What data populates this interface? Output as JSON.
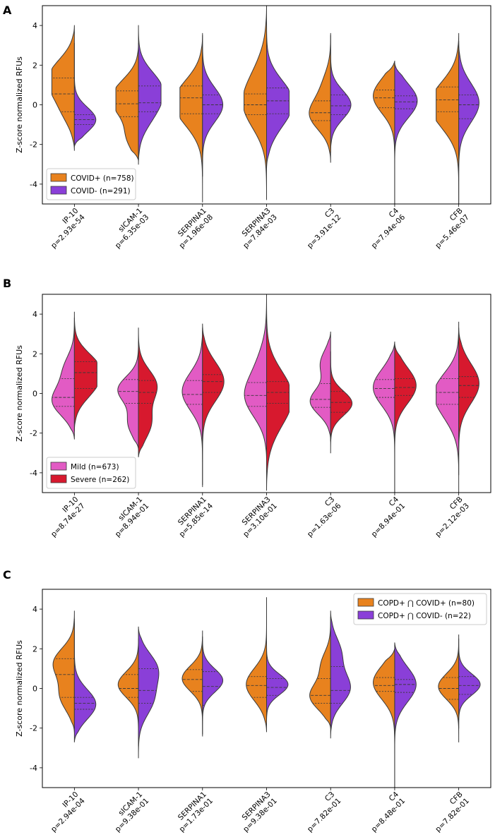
{
  "chart_data": [
    {
      "panel": "A",
      "type": "violin",
      "split": true,
      "ylabel": "Z-score normalized RFUs",
      "ylim": [
        -5,
        5
      ],
      "yticks": [
        -4,
        -2,
        0,
        2,
        4
      ],
      "legend_position": "bottom-left",
      "categories": [
        "IP-10",
        "sICAM-1",
        "SERPINA1",
        "SERPINA3",
        "C3",
        "C4",
        "CFB"
      ],
      "pvalues": [
        "p=2.93e-54",
        "p=6.35e-03",
        "p=1.96e-08",
        "p=7.84e-03",
        "p=3.91e-12",
        "p=7.94e-06",
        "p=5.46e-07"
      ],
      "series": [
        {
          "name": "COVID+ (n=758)",
          "color": "#E8821E",
          "side": "left",
          "violins": [
            {
              "min": -2.3,
              "max": 4.0,
              "q1": -0.35,
              "median": 0.55,
              "q3": 1.35,
              "peaks": [
                [
                  -0.3,
                  0.45
                ],
                [
                  1.0,
                  0.8
                ],
                [
                  1.9,
                  0.55
                ]
              ]
            },
            {
              "min": -2.8,
              "max": 3.1,
              "q1": -0.6,
              "median": 0.05,
              "q3": 0.7,
              "peaks": [
                [
                  -1.6,
                  0.5
                ],
                [
                  0.0,
                  0.85
                ],
                [
                  0.9,
                  0.6
                ]
              ]
            },
            {
              "min": -4.9,
              "max": 3.5,
              "q1": -0.45,
              "median": 0.35,
              "q3": 0.95,
              "peaks": [
                [
                  0.4,
                  0.9
                ],
                [
                  -0.5,
                  0.5
                ]
              ]
            },
            {
              "min": -4.8,
              "max": 5.0,
              "q1": -0.5,
              "median": 0.0,
              "q3": 0.55,
              "peaks": [
                [
                  -0.1,
                  0.9
                ],
                [
                  1.5,
                  0.35
                ]
              ]
            },
            {
              "min": -2.9,
              "max": 3.5,
              "q1": -0.8,
              "median": -0.4,
              "q3": 0.2,
              "peaks": [
                [
                  -0.5,
                  0.9
                ],
                [
                  1.0,
                  0.3
                ]
              ]
            },
            {
              "min": -5.0,
              "max": 2.2,
              "q1": -0.15,
              "median": 0.35,
              "q3": 0.75,
              "peaks": [
                [
                  0.45,
                  0.95
                ]
              ]
            },
            {
              "min": -5.0,
              "max": 3.6,
              "q1": -0.35,
              "median": 0.25,
              "q3": 0.9,
              "peaks": [
                [
                  0.3,
                  0.9
                ],
                [
                  -0.6,
                  0.5
                ]
              ]
            }
          ]
        },
        {
          "name": "COVID- (n=291)",
          "color": "#8A3FD8",
          "side": "right",
          "violins": [
            {
              "min": -2.1,
              "max": 3.1,
              "q1": -1.0,
              "median": -0.75,
              "q3": -0.5,
              "peaks": [
                [
                  -0.75,
                  0.95
                ]
              ]
            },
            {
              "min": -3.0,
              "max": 4.0,
              "q1": -0.35,
              "median": 0.1,
              "q3": 0.95,
              "peaks": [
                [
                  0.9,
                  0.9
                ],
                [
                  -0.4,
                  0.55
                ]
              ]
            },
            {
              "min": -3.6,
              "max": 3.6,
              "q1": -0.45,
              "median": 0.0,
              "q3": 0.5,
              "peaks": [
                [
                  0.0,
                  0.9
                ]
              ]
            },
            {
              "min": -3.2,
              "max": 5.0,
              "q1": -0.45,
              "median": 0.2,
              "q3": 0.85,
              "peaks": [
                [
                  0.4,
                  0.9
                ],
                [
                  -0.7,
                  0.45
                ]
              ]
            },
            {
              "min": -2.4,
              "max": 3.6,
              "q1": -0.5,
              "median": -0.05,
              "q3": 0.5,
              "peaks": [
                [
                  0.0,
                  0.9
                ]
              ]
            },
            {
              "min": -5.0,
              "max": 2.1,
              "q1": -0.2,
              "median": 0.15,
              "q3": 0.45,
              "peaks": [
                [
                  0.2,
                  1.0
                ]
              ]
            },
            {
              "min": -5.0,
              "max": 3.2,
              "q1": -0.7,
              "median": 0.0,
              "q3": 0.5,
              "peaks": [
                [
                  0.1,
                  0.9
                ]
              ]
            }
          ]
        }
      ]
    },
    {
      "panel": "B",
      "type": "violin",
      "split": true,
      "ylabel": "Z-score normalized RFUs",
      "ylim": [
        -5,
        5
      ],
      "yticks": [
        -4,
        -2,
        0,
        2,
        4
      ],
      "legend_position": "bottom-left",
      "categories": [
        "IP-10",
        "sICAM-1",
        "SERPINA1",
        "SERPINA3",
        "C3",
        "C4",
        "CFB"
      ],
      "pvalues": [
        "p=8.74e-27",
        "p=8.94e-01",
        "p=5.85e-14",
        "p=3.10e-01",
        "p=1.63e-06",
        "p=8.94e-01",
        "p=2.12e-03"
      ],
      "series": [
        {
          "name": "Mild (n=673)",
          "color": "#E25BC4",
          "side": "left",
          "violins": [
            {
              "min": -2.3,
              "max": 3.8,
              "q1": -0.65,
              "median": -0.2,
              "q3": 0.75,
              "peaks": [
                [
                  -0.4,
                  0.95
                ],
                [
                  1.2,
                  0.45
                ]
              ]
            },
            {
              "min": -2.8,
              "max": 2.6,
              "q1": -0.5,
              "median": 0.1,
              "q3": 0.7,
              "peaks": [
                [
                  0.2,
                  0.9
                ],
                [
                  -1.5,
                  0.45
                ]
              ]
            },
            {
              "min": -4.6,
              "max": 3.3,
              "q1": -0.55,
              "median": -0.05,
              "q3": 0.65,
              "peaks": [
                [
                  0.1,
                  0.9
                ]
              ]
            },
            {
              "min": -3.4,
              "max": 5.0,
              "q1": -0.65,
              "median": -0.1,
              "q3": 0.55,
              "peaks": [
                [
                  -0.2,
                  0.9
                ],
                [
                  1.5,
                  0.3
                ]
              ]
            },
            {
              "min": -2.4,
              "max": 3.1,
              "q1": -0.7,
              "median": -0.3,
              "q3": 0.5,
              "peaks": [
                [
                  -0.4,
                  0.9
                ],
                [
                  1.5,
                  0.45
                ]
              ]
            },
            {
              "min": -5.0,
              "max": 2.6,
              "q1": -0.2,
              "median": 0.25,
              "q3": 0.7,
              "peaks": [
                [
                  0.3,
                  0.95
                ]
              ]
            },
            {
              "min": -4.1,
              "max": 3.6,
              "q1": -0.55,
              "median": 0.05,
              "q3": 0.75,
              "peaks": [
                [
                  0.2,
                  0.9
                ],
                [
                  -1.0,
                  0.4
                ]
              ]
            }
          ]
        },
        {
          "name": "Severe (n=262)",
          "color": "#D7192E",
          "side": "right",
          "violins": [
            {
              "min": -1.9,
              "max": 4.1,
              "q1": 0.25,
              "median": 1.05,
              "q3": 1.6,
              "peaks": [
                [
                  0.3,
                  0.7
                ],
                [
                  1.4,
                  0.9
                ]
              ]
            },
            {
              "min": -3.2,
              "max": 3.3,
              "q1": -0.5,
              "median": 0.05,
              "q3": 0.65,
              "peaks": [
                [
                  0.4,
                  0.8
                ],
                [
                  -1.5,
                  0.55
                ]
              ]
            },
            {
              "min": -4.7,
              "max": 3.5,
              "q1": 0.05,
              "median": 0.6,
              "q3": 0.95,
              "peaks": [
                [
                  0.6,
                  0.95
                ]
              ]
            },
            {
              "min": -4.9,
              "max": 5.0,
              "q1": -0.5,
              "median": 0.05,
              "q3": 0.6,
              "peaks": [
                [
                  0.1,
                  0.9
                ],
                [
                  -1.2,
                  0.4
                ]
              ]
            },
            {
              "min": -3.0,
              "max": 2.1,
              "q1": -0.95,
              "median": -0.45,
              "q3": 0.1,
              "peaks": [
                [
                  -0.5,
                  0.95
                ]
              ]
            },
            {
              "min": -5.0,
              "max": 2.5,
              "q1": -0.1,
              "median": 0.3,
              "q3": 0.75,
              "peaks": [
                [
                  0.4,
                  0.95
                ]
              ]
            },
            {
              "min": -5.0,
              "max": 3.3,
              "q1": -0.2,
              "median": 0.4,
              "q3": 0.85,
              "peaks": [
                [
                  0.5,
                  0.9
                ]
              ]
            }
          ]
        }
      ]
    },
    {
      "panel": "C",
      "type": "violin",
      "split": true,
      "ylabel": "Z-score normalized RFUs",
      "ylim": [
        -5,
        5
      ],
      "yticks": [
        -4,
        -2,
        0,
        2,
        4
      ],
      "legend_position": "top-right",
      "categories": [
        "IP-10",
        "sICAM-1",
        "SERPINA1",
        "SERPINA3",
        "C3",
        "C4",
        "CFB"
      ],
      "pvalues": [
        "p=2.94e-04",
        "p=9.38e-01",
        "p=1.73e-01",
        "p=9.38e-01",
        "p=7.82e-01",
        "p=8.48e-01",
        "p=7.82e-01"
      ],
      "series": [
        {
          "name": "COPD+ ⋂ COVID+ (n=80)",
          "color": "#E8821E",
          "side": "left",
          "violins": [
            {
              "min": -2.2,
              "max": 3.9,
              "q1": -0.45,
              "median": 0.7,
              "q3": 1.5,
              "peaks": [
                [
                  -0.4,
                  0.6
                ],
                [
                  1.3,
                  0.9
                ]
              ]
            },
            {
              "min": -2.9,
              "max": 2.5,
              "q1": -0.45,
              "median": 0.0,
              "q3": 0.7,
              "peaks": [
                [
                  0.2,
                  0.9
                ]
              ]
            },
            {
              "min": -2.4,
              "max": 2.9,
              "q1": -0.15,
              "median": 0.45,
              "q3": 0.95,
              "peaks": [
                [
                  0.5,
                  0.9
                ]
              ]
            },
            {
              "min": -2.2,
              "max": 4.6,
              "q1": -0.45,
              "median": 0.15,
              "q3": 0.6,
              "peaks": [
                [
                  0.2,
                  0.9
                ]
              ]
            },
            {
              "min": -2.0,
              "max": 3.6,
              "q1": -0.75,
              "median": -0.35,
              "q3": 0.5,
              "peaks": [
                [
                  -0.4,
                  0.9
                ],
                [
                  1.2,
                  0.4
                ]
              ]
            },
            {
              "min": -5.0,
              "max": 2.0,
              "q1": -0.15,
              "median": 0.15,
              "q3": 0.55,
              "peaks": [
                [
                  0.3,
                  0.95
                ]
              ]
            },
            {
              "min": -2.7,
              "max": 2.7,
              "q1": -0.55,
              "median": 0.0,
              "q3": 0.55,
              "peaks": [
                [
                  0.1,
                  0.9
                ]
              ]
            }
          ]
        },
        {
          "name": "COPD+ ⋂ COVID- (n=22)",
          "color": "#8A3FD8",
          "side": "right",
          "violins": [
            {
              "min": -2.7,
              "max": 3.5,
              "q1": -1.05,
              "median": -0.75,
              "q3": -0.45,
              "peaks": [
                [
                  -0.8,
                  0.95
                ]
              ]
            },
            {
              "min": -3.5,
              "max": 3.1,
              "q1": -0.75,
              "median": -0.1,
              "q3": 1.0,
              "peaks": [
                [
                  1.0,
                  0.8
                ],
                [
                  -0.6,
                  0.6
                ]
              ]
            },
            {
              "min": -2.3,
              "max": 2.6,
              "q1": -0.85,
              "median": 0.1,
              "q3": 0.85,
              "peaks": [
                [
                  0.4,
                  0.9
                ]
              ]
            },
            {
              "min": -1.7,
              "max": 2.6,
              "q1": -0.35,
              "median": 0.05,
              "q3": 0.5,
              "peaks": [
                [
                  0.2,
                  0.95
                ]
              ]
            },
            {
              "min": -2.5,
              "max": 3.9,
              "q1": -0.75,
              "median": -0.1,
              "q3": 1.1,
              "peaks": [
                [
                  0.0,
                  0.85
                ],
                [
                  1.8,
                  0.45
                ]
              ]
            },
            {
              "min": -5.0,
              "max": 2.3,
              "q1": -0.2,
              "median": 0.2,
              "q3": 0.45,
              "peaks": [
                [
                  0.2,
                  0.95
                ]
              ]
            },
            {
              "min": -2.0,
              "max": 2.5,
              "q1": -0.3,
              "median": 0.15,
              "q3": 0.6,
              "peaks": [
                [
                  0.2,
                  0.95
                ]
              ]
            }
          ]
        }
      ]
    }
  ]
}
